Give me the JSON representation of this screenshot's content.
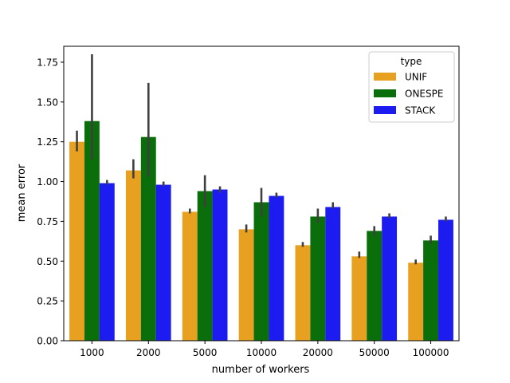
{
  "chart_data": {
    "type": "bar",
    "xlabel": "number of workers",
    "ylabel": "mean error",
    "categories": [
      "1000",
      "2000",
      "5000",
      "10000",
      "20000",
      "50000",
      "100000"
    ],
    "ylim": [
      0,
      1.85
    ],
    "yticks": [
      0.0,
      0.25,
      0.5,
      0.75,
      1.0,
      1.25,
      1.5,
      1.75
    ],
    "ytick_labels": [
      "0.00",
      "0.25",
      "0.50",
      "0.75",
      "1.00",
      "1.25",
      "1.50",
      "1.75"
    ],
    "grid": false,
    "legend": {
      "title": "type",
      "position": "top-right"
    },
    "series": [
      {
        "name": "UNIF",
        "color": "#e8a020",
        "values": [
          1.25,
          1.07,
          0.81,
          0.7,
          0.6,
          0.53,
          0.49
        ],
        "ci_low": [
          1.19,
          1.02,
          0.8,
          0.68,
          0.59,
          0.52,
          0.48
        ],
        "ci_high": [
          1.32,
          1.14,
          0.83,
          0.73,
          0.62,
          0.56,
          0.51
        ]
      },
      {
        "name": "ONESPE",
        "color": "#0a6e0a",
        "values": [
          1.38,
          1.28,
          0.94,
          0.87,
          0.78,
          0.69,
          0.63
        ],
        "ci_low": [
          1.14,
          1.03,
          0.84,
          0.78,
          0.74,
          0.66,
          0.61
        ],
        "ci_high": [
          1.8,
          1.62,
          1.04,
          0.96,
          0.83,
          0.72,
          0.66
        ]
      },
      {
        "name": "STACK",
        "color": "#1c1cf0",
        "values": [
          0.99,
          0.98,
          0.95,
          0.91,
          0.84,
          0.78,
          0.76
        ],
        "ci_low": [
          0.98,
          0.97,
          0.93,
          0.9,
          0.83,
          0.77,
          0.75
        ],
        "ci_high": [
          1.01,
          1.0,
          0.97,
          0.93,
          0.87,
          0.8,
          0.78
        ]
      }
    ]
  }
}
